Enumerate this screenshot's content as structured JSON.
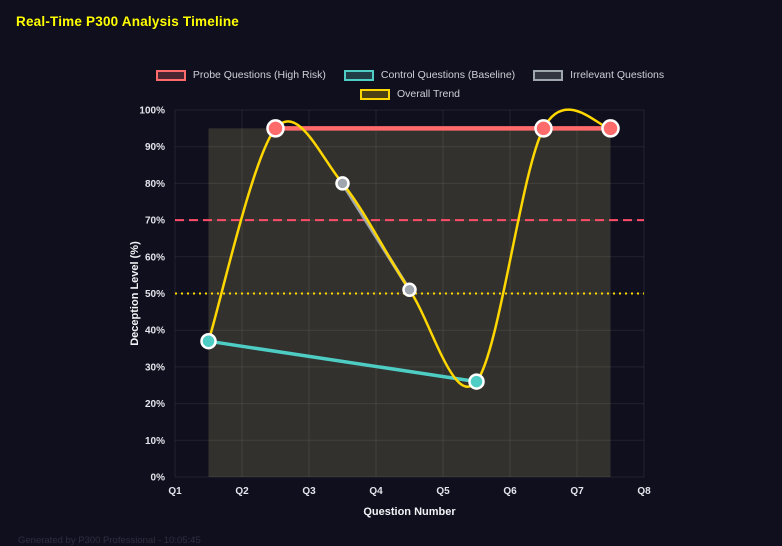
{
  "page": {
    "title": "Real-Time P300 Analysis Timeline",
    "title_color": "#ffff00",
    "footer_note": "Generated by P300 Professional - 10:05:45",
    "background_color": "#0f0f1d"
  },
  "legend": {
    "items": [
      {
        "label": "Probe Questions (High Risk)",
        "color": "#ff6b6b"
      },
      {
        "label": "Control Questions (Baseline)",
        "color": "#4ecdc4"
      },
      {
        "label": "Irrelevant Questions",
        "color": "#a0a6ad"
      },
      {
        "label": "Overall Trend",
        "color": "#ffd700"
      }
    ]
  },
  "chart_data": {
    "type": "line",
    "title": "Real-Time P300 Analysis Timeline",
    "xlabel": "Question Number",
    "ylabel": "Deception Level (%)",
    "xlim": [
      1,
      8
    ],
    "ylim": [
      0,
      100
    ],
    "x_ticks": [
      "Q1",
      "Q2",
      "Q3",
      "Q4",
      "Q5",
      "Q6",
      "Q7",
      "Q8"
    ],
    "y_ticks": [
      "0%",
      "10%",
      "20%",
      "30%",
      "40%",
      "50%",
      "60%",
      "70%",
      "80%",
      "90%",
      "100%"
    ],
    "grid": true,
    "legend_position": "top",
    "series": [
      {
        "name": "Probe Questions (High Risk)",
        "color": "#ff6b6b",
        "line_width": 4.5,
        "point_radius": 8,
        "smooth": false,
        "points": [
          [
            2.5,
            95
          ],
          [
            6.5,
            95
          ],
          [
            7.5,
            95
          ]
        ]
      },
      {
        "name": "Control Questions (Baseline)",
        "color": "#4ecdc4",
        "line_width": 3.5,
        "point_radius": 7,
        "smooth": false,
        "points": [
          [
            1.5,
            37
          ],
          [
            5.5,
            26
          ]
        ]
      },
      {
        "name": "Irrelevant Questions",
        "color": "#a0a6ad",
        "line_width": 3.5,
        "point_radius": 6,
        "smooth": false,
        "points": [
          [
            3.5,
            80
          ],
          [
            4.5,
            51
          ]
        ]
      },
      {
        "name": "Overall Trend",
        "color": "#ffd700",
        "line_width": 2.5,
        "point_radius": 0,
        "smooth": true,
        "points": [
          [
            1.5,
            37
          ],
          [
            2.5,
            95
          ],
          [
            3.5,
            80
          ],
          [
            4.5,
            51
          ],
          [
            5.5,
            26
          ],
          [
            6.5,
            95
          ],
          [
            7.5,
            95
          ]
        ]
      }
    ],
    "threshold_lines": [
      {
        "y": 70,
        "color": "#ff4d6a",
        "style": "dashed"
      },
      {
        "y": 50,
        "color": "#ffd700",
        "style": "dotted"
      }
    ],
    "highlight_region": {
      "x_start": 1.5,
      "x_end": 7.5,
      "y_start": 0,
      "y_end": 95,
      "color": "rgba(255,245,140,0.15)"
    }
  }
}
